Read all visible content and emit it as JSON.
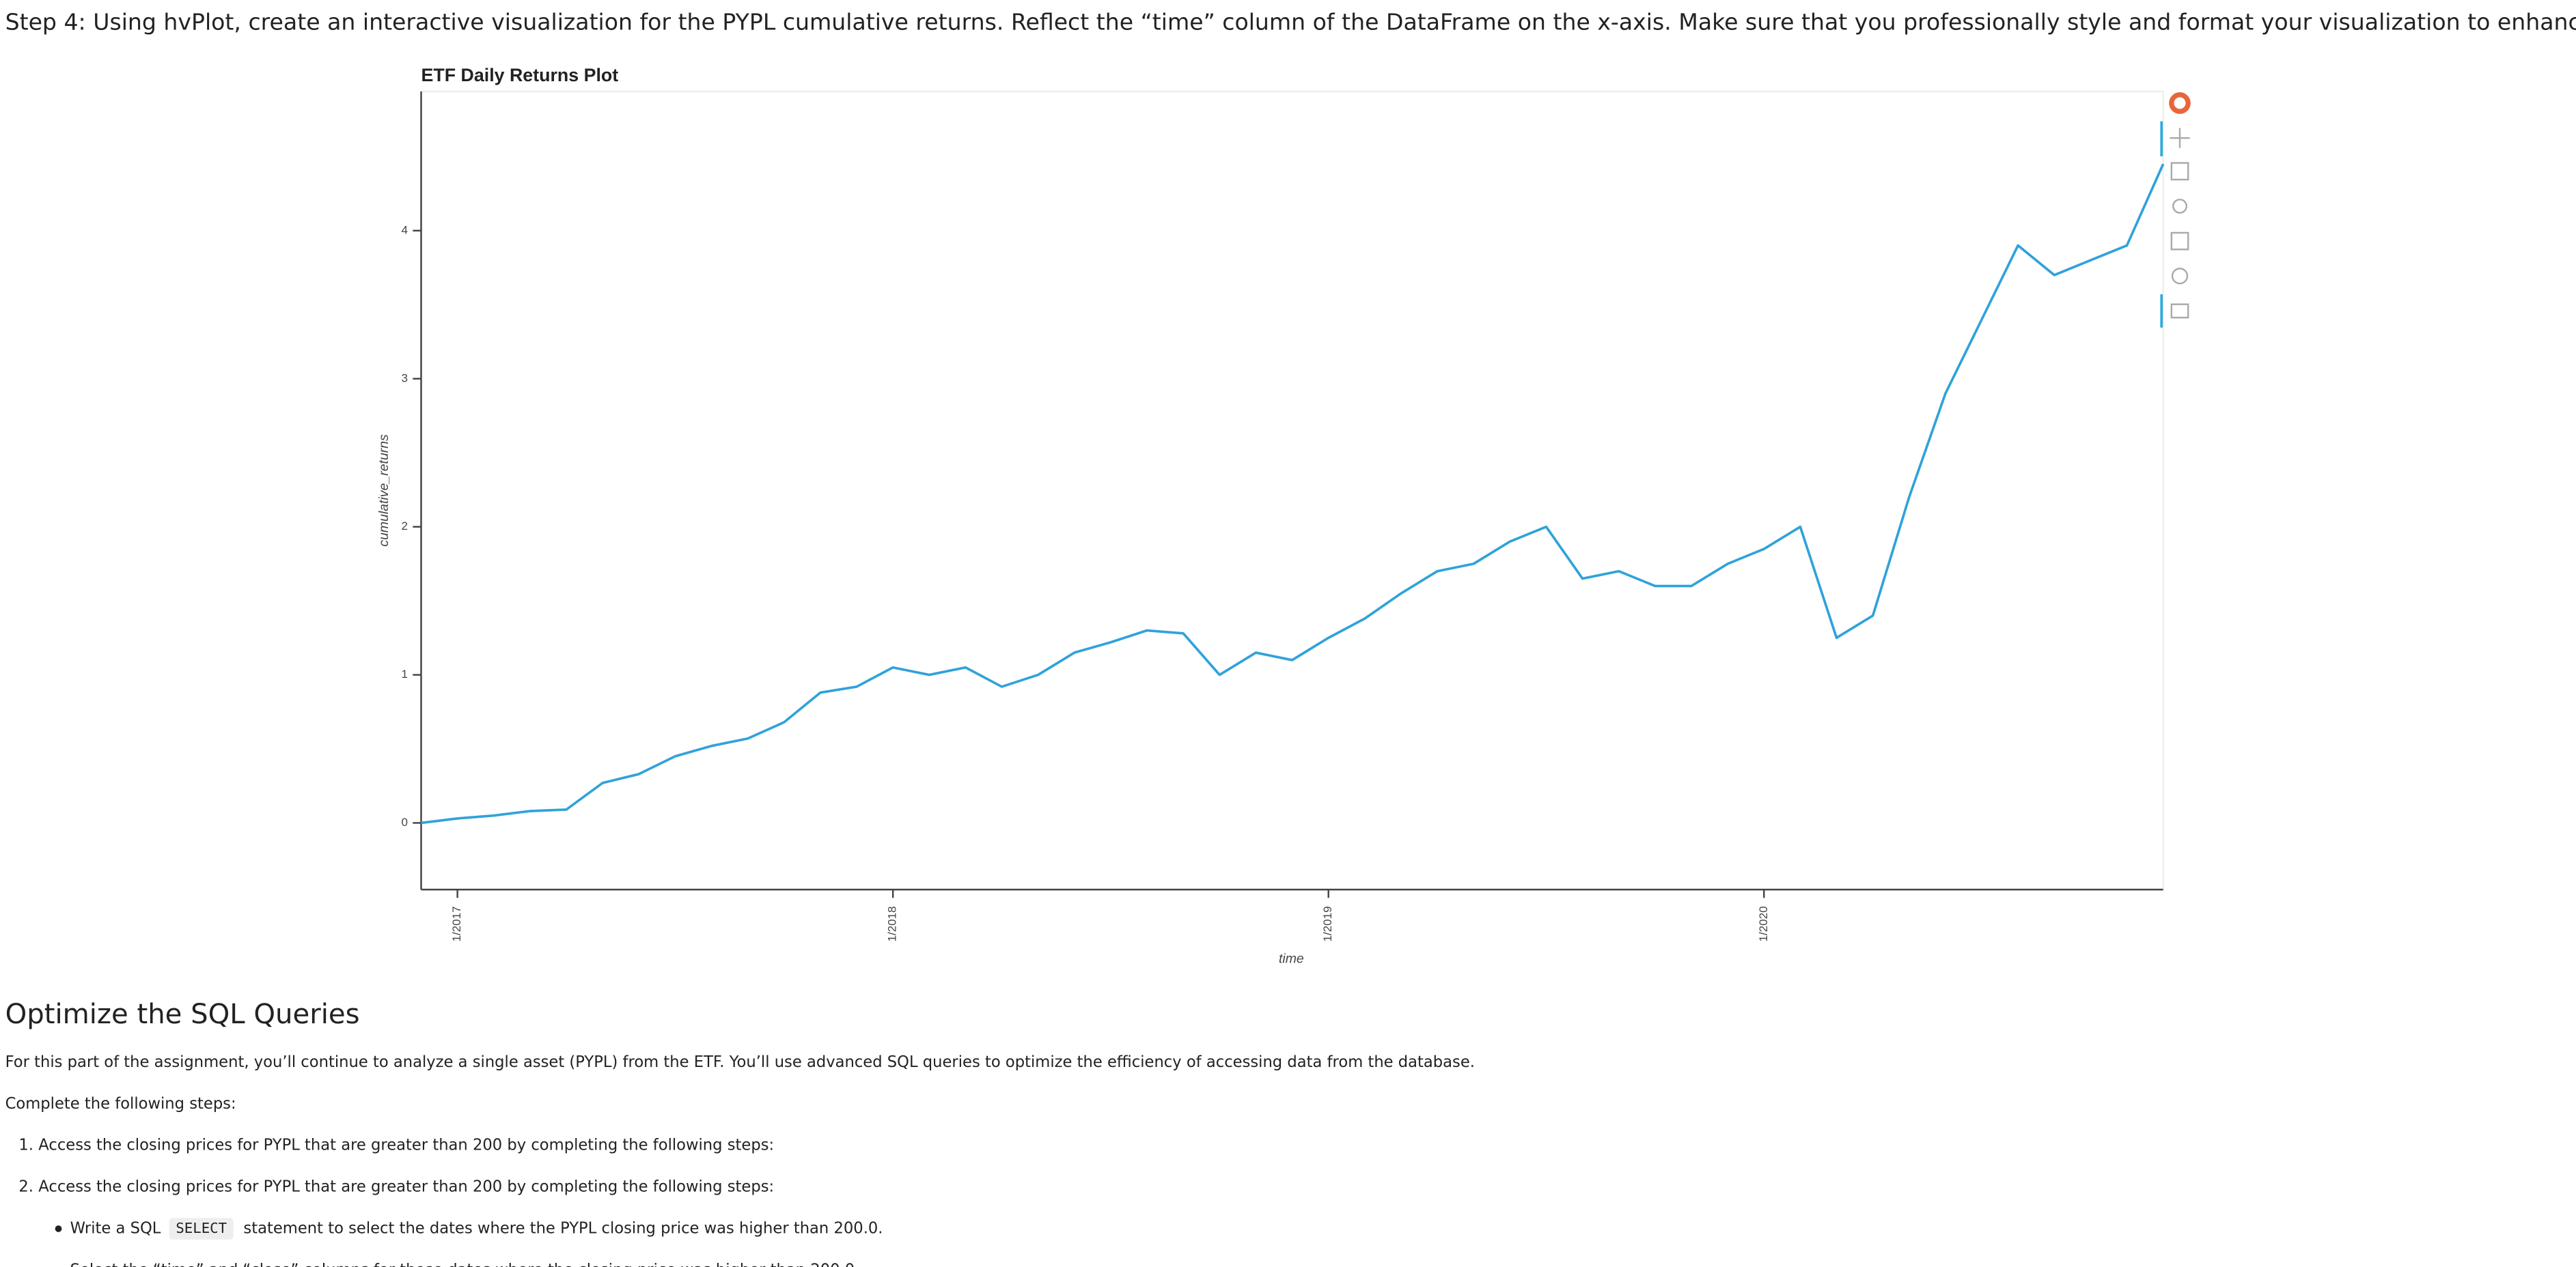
{
  "step_text": "Step 4: Using hvPlot, create an interactive visualization for the PYPL cumulative returns. Reflect the “time” column of the DataFrame on the x-axis. Make sure that you professionally style and format your visualization to enhance its readability.",
  "chart_data": {
    "type": "line",
    "title": "ETF Daily Returns Plot",
    "x_label": "time",
    "y_label": "cumulative_returns",
    "color": "#30a2da",
    "x": [
      "2016-12",
      "2017-01",
      "2017-02",
      "2017-03",
      "2017-04",
      "2017-05",
      "2017-06",
      "2017-07",
      "2017-08",
      "2017-09",
      "2017-10",
      "2017-11",
      "2017-12",
      "2018-01",
      "2018-02",
      "2018-03",
      "2018-04",
      "2018-05",
      "2018-06",
      "2018-07",
      "2018-08",
      "2018-09",
      "2018-10",
      "2018-11",
      "2018-12",
      "2019-01",
      "2019-02",
      "2019-03",
      "2019-04",
      "2019-05",
      "2019-06",
      "2019-07",
      "2019-08",
      "2019-09",
      "2019-10",
      "2019-11",
      "2019-12",
      "2020-01",
      "2020-02",
      "2020-03",
      "2020-04",
      "2020-05",
      "2020-06",
      "2020-07",
      "2020-08",
      "2020-09",
      "2020-10",
      "2020-11",
      "2020-12"
    ],
    "values": [
      0.0,
      0.03,
      0.05,
      0.08,
      0.09,
      0.27,
      0.33,
      0.45,
      0.52,
      0.57,
      0.68,
      0.88,
      0.92,
      1.05,
      1.0,
      1.05,
      0.92,
      1.0,
      1.15,
      1.22,
      1.3,
      1.28,
      1.0,
      1.15,
      1.1,
      1.25,
      1.38,
      1.55,
      1.7,
      1.75,
      1.9,
      2.0,
      1.65,
      1.7,
      1.6,
      1.6,
      1.75,
      1.85,
      2.0,
      1.25,
      1.4,
      2.2,
      2.9,
      3.4,
      3.9,
      3.7,
      3.8,
      3.9,
      4.45
    ],
    "xlim": [
      "2016-12",
      "2020-12"
    ],
    "xticks": [
      {
        "value": "2017-01",
        "label": "1/2017"
      },
      {
        "value": "2018-01",
        "label": "1/2018"
      },
      {
        "value": "2019-01",
        "label": "1/2019"
      },
      {
        "value": "2020-01",
        "label": "1/2020"
      }
    ],
    "ylim": [
      -0.45,
      4.94
    ],
    "yticks": [
      0,
      1,
      2,
      3,
      4
    ],
    "grid": false
  },
  "section": {
    "title": "Optimize the SQL Queries",
    "paragraphs": [
      "For this part of the assignment, you’ll continue to analyze a single asset (PYPL) from the ETF. You’ll use advanced SQL queries to optimize the efficiency of accessing data from the database.",
      "Complete the following steps:"
    ],
    "steps": [
      {
        "number": "1.",
        "text": "Access the closing prices for PYPL that are greater than 200 by completing the following steps:"
      },
      {
        "number": "2.",
        "text": "Access the closing prices for PYPL that are greater than 200 by completing the following steps:"
      }
    ],
    "bullets": [
      {
        "before": "Write a SQL",
        "code": "SELECT",
        "after": "statement to select the dates where the PYPL closing price was higher than 200.0."
      },
      {
        "before": "Select the “time” and “close” columns for those dates where the closing price was higher than 200.0."
      }
    ]
  }
}
